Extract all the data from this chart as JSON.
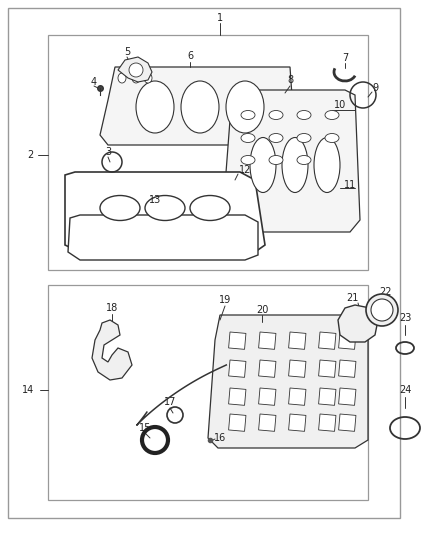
{
  "background_color": "#ffffff",
  "line_color": "#333333",
  "text_color": "#222222",
  "box_edge_color": "#999999",
  "fs": 7.0
}
